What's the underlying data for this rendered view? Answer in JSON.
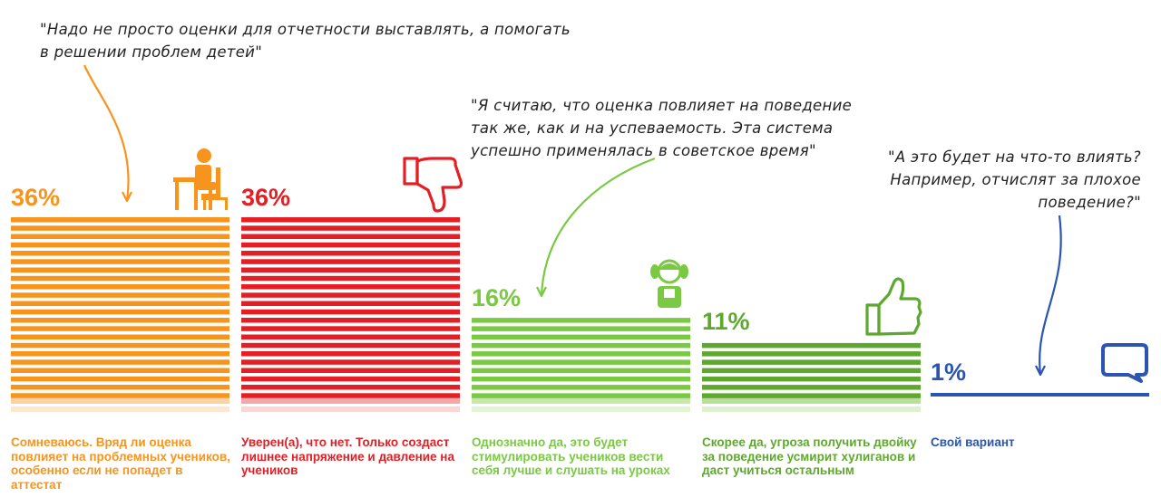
{
  "chart_data": {
    "type": "bar",
    "unit": "%",
    "categories": [
      "Сомневаюсь. Вряд ли оценка повлияет на проблемных учеников, особенно если не попадет в аттестат",
      "Уверен(а), что нет. Только создаст лишнее напряжение и давление на учеников",
      "Однозначно да, это будет стимулировать учеников вести себя лучше и слушать на уроках",
      "Скорее да, угроза получить двойку за поведение усмирит хулиганов и даст учиться остальным",
      "Свой вариант"
    ],
    "values": [
      36,
      36,
      16,
      11,
      1
    ],
    "value_labels": [
      "36%",
      "36%",
      "16%",
      "11%",
      "1%"
    ],
    "colors": [
      "#f7941d",
      "#e31e24",
      "#7ac943",
      "#5fa82f",
      "#2b55b0"
    ],
    "icons": [
      "pupil-at-desk-icon",
      "thumbs-down-icon",
      "girl-icon",
      "thumbs-up-icon",
      "speech-bubble-icon"
    ],
    "ylim": [
      0,
      36
    ]
  },
  "quotes": [
    {
      "lines": [
        "\"Надо не просто оценки для отчетности выставлять, а помогать",
        "в решении проблем детей\""
      ],
      "color": "#f7941d"
    },
    {
      "lines": [
        "\"Я считаю, что оценка повлияет на поведение",
        "так же, как и на успеваемость. Эта система",
        "успешно применялась в советское время\""
      ],
      "color": "#7ac943"
    },
    {
      "lines": [
        "\"А это будет на что-то влиять?",
        "Например, отчислят за плохое",
        "поведение?\""
      ],
      "color": "#2b55b0"
    }
  ]
}
